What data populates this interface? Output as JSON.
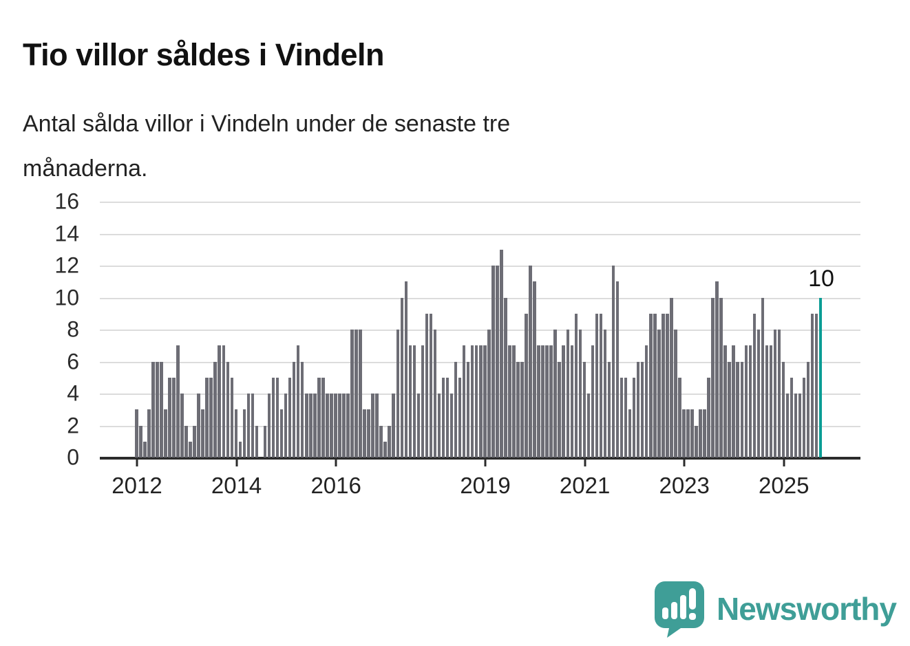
{
  "header": {
    "title": "Tio villor såldes i Vindeln",
    "subtitle_line1": "Antal sålda villor i Vindeln under de senaste tre",
    "subtitle_line2": "månaderna."
  },
  "annotation": {
    "last_value_label": "10"
  },
  "brand": {
    "name": "Newsworthy"
  },
  "colors": {
    "bar": "#6d6d75",
    "accent": "#0b9d95",
    "gridline": "#dcdcdc",
    "axis": "#2b2b2b",
    "text": "#1a1a1a",
    "logo": "#3f9e97"
  },
  "chart_data": {
    "type": "bar",
    "title": "Tio villor såldes i Vindeln",
    "xlabel": "",
    "ylabel": "",
    "ylim": [
      0,
      16
    ],
    "y_ticks": [
      0,
      2,
      4,
      6,
      8,
      10,
      12,
      14,
      16
    ],
    "grid": true,
    "legend_position": "none",
    "series_start": "2012-01",
    "series_frequency": "monthly",
    "x_ticks": [
      {
        "label": "2012",
        "month_index": 0
      },
      {
        "label": "2014",
        "month_index": 24
      },
      {
        "label": "2016",
        "month_index": 48
      },
      {
        "label": "2019",
        "month_index": 84
      },
      {
        "label": "2021",
        "month_index": 108
      },
      {
        "label": "2023",
        "month_index": 132
      },
      {
        "label": "2025",
        "month_index": 156
      }
    ],
    "values": [
      3,
      2,
      1,
      3,
      6,
      6,
      6,
      3,
      5,
      5,
      7,
      4,
      2,
      1,
      2,
      4,
      3,
      5,
      5,
      6,
      7,
      7,
      6,
      5,
      3,
      1,
      3,
      4,
      4,
      2,
      0,
      2,
      4,
      5,
      5,
      3,
      4,
      5,
      6,
      7,
      6,
      4,
      4,
      4,
      5,
      5,
      4,
      4,
      4,
      4,
      4,
      4,
      8,
      8,
      8,
      3,
      3,
      4,
      4,
      2,
      1,
      2,
      4,
      8,
      10,
      11,
      7,
      7,
      4,
      7,
      9,
      9,
      8,
      4,
      5,
      5,
      4,
      6,
      5,
      7,
      6,
      7,
      7,
      7,
      7,
      8,
      12,
      12,
      13,
      10,
      7,
      7,
      6,
      6,
      9,
      12,
      11,
      7,
      7,
      7,
      7,
      8,
      6,
      7,
      8,
      7,
      9,
      8,
      6,
      4,
      7,
      9,
      9,
      8,
      6,
      12,
      11,
      5,
      5,
      3,
      5,
      6,
      6,
      7,
      9,
      9,
      8,
      9,
      9,
      10,
      8,
      5,
      3,
      3,
      3,
      2,
      3,
      3,
      5,
      10,
      11,
      10,
      7,
      6,
      7,
      6,
      6,
      7,
      7,
      9,
      8,
      10,
      7,
      7,
      8,
      8,
      6,
      4,
      5,
      4,
      4,
      5,
      6,
      9,
      9,
      10
    ],
    "highlight_last_bar": true,
    "last_value": 10
  }
}
